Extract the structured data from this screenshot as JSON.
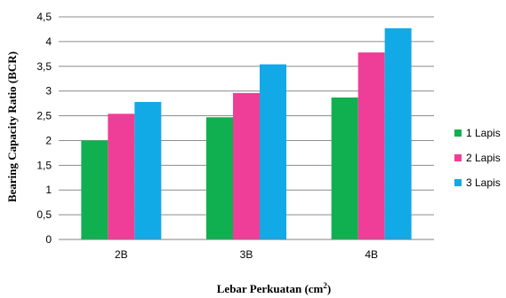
{
  "chart_data": {
    "type": "bar",
    "xlabel": "Lebar Perkuatan (cm",
    "xlabel_sup": "2",
    "xlabel_suffix": ")",
    "ylabel": "Bearing Capacity Ratio (BCR)",
    "categories": [
      "2B",
      "3B",
      "4B"
    ],
    "ylim": [
      0,
      4.5
    ],
    "yticks": [
      "0",
      "0,5",
      "1",
      "1,5",
      "2",
      "2,5",
      "3",
      "3,5",
      "4",
      "4,5"
    ],
    "grid": true,
    "legend_position": "right",
    "series": [
      {
        "name": "1 Lapis",
        "color": "#10b050",
        "values": [
          2.0,
          2.47,
          2.87
        ]
      },
      {
        "name": "2 Lapis",
        "color": "#ef3e97",
        "values": [
          2.54,
          2.96,
          3.78
        ]
      },
      {
        "name": "3 Lapis",
        "color": "#12a9e7",
        "values": [
          2.78,
          3.54,
          4.27
        ]
      }
    ]
  }
}
